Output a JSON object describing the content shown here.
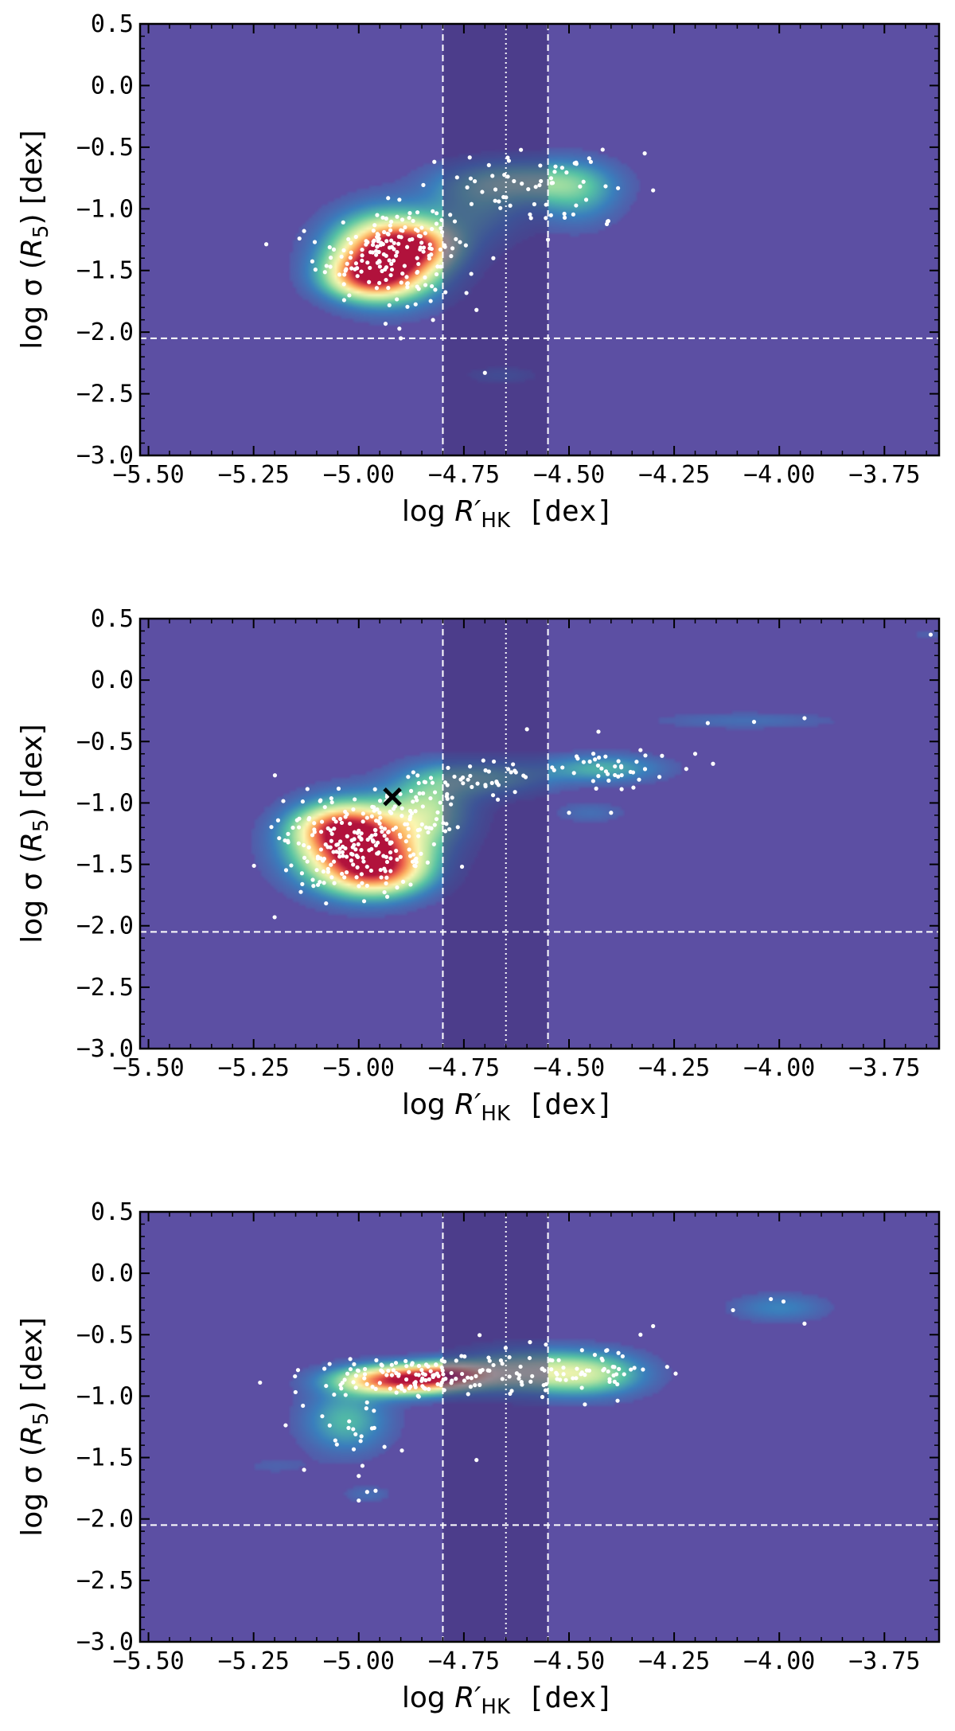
{
  "colors": {
    "background": "#5c4fa3",
    "band": "#3f2f78",
    "points": "#ffffff",
    "lines": "#ffffff",
    "marker": "#000000",
    "colormap": [
      "#5c4fa3",
      "#3a7fbd",
      "#55c2a4",
      "#b8e6a0",
      "#fdf7b2",
      "#fdb864",
      "#ec5d4a",
      "#b1123c"
    ]
  },
  "chart_data": [
    {
      "type": "scatter",
      "name": "top",
      "xlabel": {
        "prefix": "log ",
        "var": "R′",
        "sub": "HK",
        "unit": "  [dex]"
      },
      "ylabel": {
        "prefix": "log σ (",
        "var": "R",
        "sub": "5",
        "suffix": ")  [dex]"
      },
      "xlim": [
        -5.52,
        -3.62
      ],
      "ylim": [
        -3.0,
        0.5
      ],
      "xticks": [
        "-5.50",
        "-5.25",
        "-5.00",
        "-4.75",
        "-4.50",
        "-4.25",
        "-4.00",
        "-3.75"
      ],
      "yticks": [
        "0.5",
        "0.0",
        "-0.5",
        "-1.0",
        "-1.5",
        "-2.0",
        "-2.5",
        "-3.0"
      ],
      "band": [
        -4.8,
        -4.55
      ],
      "vlines_dashed": [
        -4.8,
        -4.55
      ],
      "vline_dotted": -4.65,
      "hline_dashed": -2.05,
      "density": [
        {
          "x": -4.93,
          "y": -1.38,
          "sx": 0.09,
          "sy": 0.22,
          "w": 1.0
        },
        {
          "x": -4.98,
          "y": -1.55,
          "sx": 0.07,
          "sy": 0.12,
          "w": 0.55
        },
        {
          "x": -4.86,
          "y": -1.3,
          "sx": 0.07,
          "sy": 0.12,
          "w": 0.45
        },
        {
          "x": -4.62,
          "y": -0.78,
          "sx": 0.12,
          "sy": 0.12,
          "w": 0.34
        },
        {
          "x": -4.48,
          "y": -0.88,
          "sx": 0.07,
          "sy": 0.18,
          "w": 0.22
        },
        {
          "x": -4.72,
          "y": -1.02,
          "sx": 0.08,
          "sy": 0.18,
          "w": 0.22
        },
        {
          "x": -4.66,
          "y": -2.35,
          "sx": 0.06,
          "sy": 0.05,
          "w": 0.1
        }
      ],
      "points": {
        "clusters": [
          {
            "x": -4.94,
            "y": -1.36,
            "sx": 0.08,
            "sy": 0.2,
            "n": 150
          },
          {
            "x": -4.85,
            "y": -1.25,
            "sx": 0.05,
            "sy": 0.12,
            "n": 30
          },
          {
            "x": -4.6,
            "y": -0.8,
            "sx": 0.12,
            "sy": 0.12,
            "n": 45
          },
          {
            "x": -4.48,
            "y": -0.95,
            "sx": 0.06,
            "sy": 0.15,
            "n": 15
          }
        ],
        "extra": [
          [
            -4.7,
            -2.33
          ],
          [
            -4.32,
            -0.55
          ],
          [
            -4.3,
            -0.85
          ],
          [
            -4.55,
            -1.25
          ],
          [
            -4.72,
            -1.82
          ],
          [
            -4.9,
            -2.05
          ],
          [
            -5.13,
            -1.18
          ],
          [
            -4.68,
            -1.4
          ],
          [
            -4.42,
            -0.52
          ]
        ]
      },
      "marker": null
    },
    {
      "type": "scatter",
      "name": "middle",
      "xlabel": {
        "prefix": "log ",
        "var": "R′",
        "sub": "HK",
        "unit": "  [dex]"
      },
      "ylabel": {
        "prefix": "log σ (",
        "var": "R",
        "sub": "5",
        "suffix": ")  [dex]"
      },
      "xlim": [
        -5.52,
        -3.62
      ],
      "ylim": [
        -3.0,
        0.5
      ],
      "xticks": [
        "-5.50",
        "-5.25",
        "-5.00",
        "-4.75",
        "-4.50",
        "-4.25",
        "-4.00",
        "-3.75"
      ],
      "yticks": [
        "0.5",
        "0.0",
        "-0.5",
        "-1.0",
        "-1.5",
        "-2.0",
        "-2.5",
        "-3.0"
      ],
      "band": [
        -4.8,
        -4.55
      ],
      "vlines_dashed": [
        -4.8,
        -4.55
      ],
      "vline_dotted": -4.65,
      "hline_dashed": -2.05,
      "density": [
        {
          "x": -5.0,
          "y": -1.35,
          "sx": 0.1,
          "sy": 0.22,
          "w": 1.0
        },
        {
          "x": -4.95,
          "y": -1.55,
          "sx": 0.08,
          "sy": 0.14,
          "w": 0.55
        },
        {
          "x": -5.05,
          "y": -1.2,
          "sx": 0.07,
          "sy": 0.12,
          "w": 0.45
        },
        {
          "x": -4.83,
          "y": -1.05,
          "sx": 0.07,
          "sy": 0.2,
          "w": 0.38
        },
        {
          "x": -4.7,
          "y": -0.8,
          "sx": 0.1,
          "sy": 0.1,
          "w": 0.3
        },
        {
          "x": -4.42,
          "y": -0.72,
          "sx": 0.1,
          "sy": 0.08,
          "w": 0.26
        },
        {
          "x": -4.08,
          "y": -0.33,
          "sx": 0.16,
          "sy": 0.05,
          "w": 0.1
        },
        {
          "x": -4.45,
          "y": -1.08,
          "sx": 0.06,
          "sy": 0.06,
          "w": 0.1
        },
        {
          "x": -3.64,
          "y": 0.37,
          "sx": 0.04,
          "sy": 0.04,
          "w": 0.06
        }
      ],
      "points": {
        "clusters": [
          {
            "x": -5.0,
            "y": -1.35,
            "sx": 0.09,
            "sy": 0.2,
            "n": 220
          },
          {
            "x": -4.85,
            "y": -1.0,
            "sx": 0.06,
            "sy": 0.2,
            "n": 40
          },
          {
            "x": -4.72,
            "y": -0.8,
            "sx": 0.07,
            "sy": 0.08,
            "n": 35
          },
          {
            "x": -4.42,
            "y": -0.73,
            "sx": 0.08,
            "sy": 0.06,
            "n": 40
          }
        ],
        "extra": [
          [
            -4.43,
            -0.42
          ],
          [
            -4.17,
            -0.35
          ],
          [
            -4.06,
            -0.34
          ],
          [
            -3.94,
            -0.31
          ],
          [
            -3.64,
            0.37
          ],
          [
            -4.5,
            -1.08
          ],
          [
            -4.4,
            -1.08
          ],
          [
            -4.2,
            -0.6
          ],
          [
            -4.33,
            -0.57
          ],
          [
            -5.2,
            -1.93
          ],
          [
            -4.6,
            -0.4
          ]
        ]
      },
      "marker": {
        "x": -4.92,
        "y": -0.95,
        "symbol": "×"
      }
    },
    {
      "type": "scatter",
      "name": "bottom",
      "xlabel": {
        "prefix": "log ",
        "var": "R′",
        "sub": "HK",
        "unit": "  [dex]"
      },
      "ylabel": {
        "prefix": "log σ (",
        "var": "R",
        "sub": "5",
        "suffix": ")  [dex]"
      },
      "xlim": [
        -5.52,
        -3.62
      ],
      "ylim": [
        -3.0,
        0.5
      ],
      "xticks": [
        "-5.50",
        "-5.25",
        "-5.00",
        "-4.75",
        "-4.50",
        "-4.25",
        "-4.00",
        "-3.75"
      ],
      "yticks": [
        "0.5",
        "0.0",
        "-0.5",
        "-1.0",
        "-1.5",
        "-2.0",
        "-2.5",
        "-3.0"
      ],
      "band": [
        -4.8,
        -4.55
      ],
      "vlines_dashed": [
        -4.8,
        -4.55
      ],
      "vline_dotted": -4.65,
      "hline_dashed": -2.05,
      "density": [
        {
          "x": -4.9,
          "y": -0.87,
          "sx": 0.1,
          "sy": 0.08,
          "w": 1.0
        },
        {
          "x": -4.78,
          "y": -0.82,
          "sx": 0.07,
          "sy": 0.07,
          "w": 0.5
        },
        {
          "x": -4.62,
          "y": -0.8,
          "sx": 0.1,
          "sy": 0.12,
          "w": 0.42
        },
        {
          "x": -4.45,
          "y": -0.82,
          "sx": 0.09,
          "sy": 0.12,
          "w": 0.42
        },
        {
          "x": -5.03,
          "y": -1.2,
          "sx": 0.07,
          "sy": 0.18,
          "w": 0.28
        },
        {
          "x": -4.98,
          "y": -1.8,
          "sx": 0.04,
          "sy": 0.05,
          "w": 0.1
        },
        {
          "x": -4.0,
          "y": -0.28,
          "sx": 0.08,
          "sy": 0.08,
          "w": 0.16
        },
        {
          "x": -5.2,
          "y": -1.57,
          "sx": 0.06,
          "sy": 0.05,
          "w": 0.06
        }
      ],
      "points": {
        "clusters": [
          {
            "x": -4.88,
            "y": -0.86,
            "sx": 0.1,
            "sy": 0.08,
            "n": 110
          },
          {
            "x": -4.62,
            "y": -0.8,
            "sx": 0.1,
            "sy": 0.12,
            "n": 45
          },
          {
            "x": -4.45,
            "y": -0.82,
            "sx": 0.07,
            "sy": 0.1,
            "n": 40
          },
          {
            "x": -5.02,
            "y": -1.25,
            "sx": 0.06,
            "sy": 0.18,
            "n": 25
          }
        ],
        "extra": [
          [
            -4.11,
            -0.3
          ],
          [
            -4.02,
            -0.21
          ],
          [
            -3.99,
            -0.23
          ],
          [
            -3.94,
            -0.41
          ],
          [
            -4.3,
            -0.43
          ],
          [
            -4.33,
            -0.5
          ],
          [
            -5.13,
            -1.6
          ],
          [
            -5.0,
            -1.85
          ],
          [
            -4.98,
            -1.78
          ],
          [
            -4.96,
            -1.77
          ],
          [
            -4.72,
            -1.52
          ],
          [
            -5.0,
            -1.65
          ]
        ]
      },
      "marker": null
    }
  ]
}
